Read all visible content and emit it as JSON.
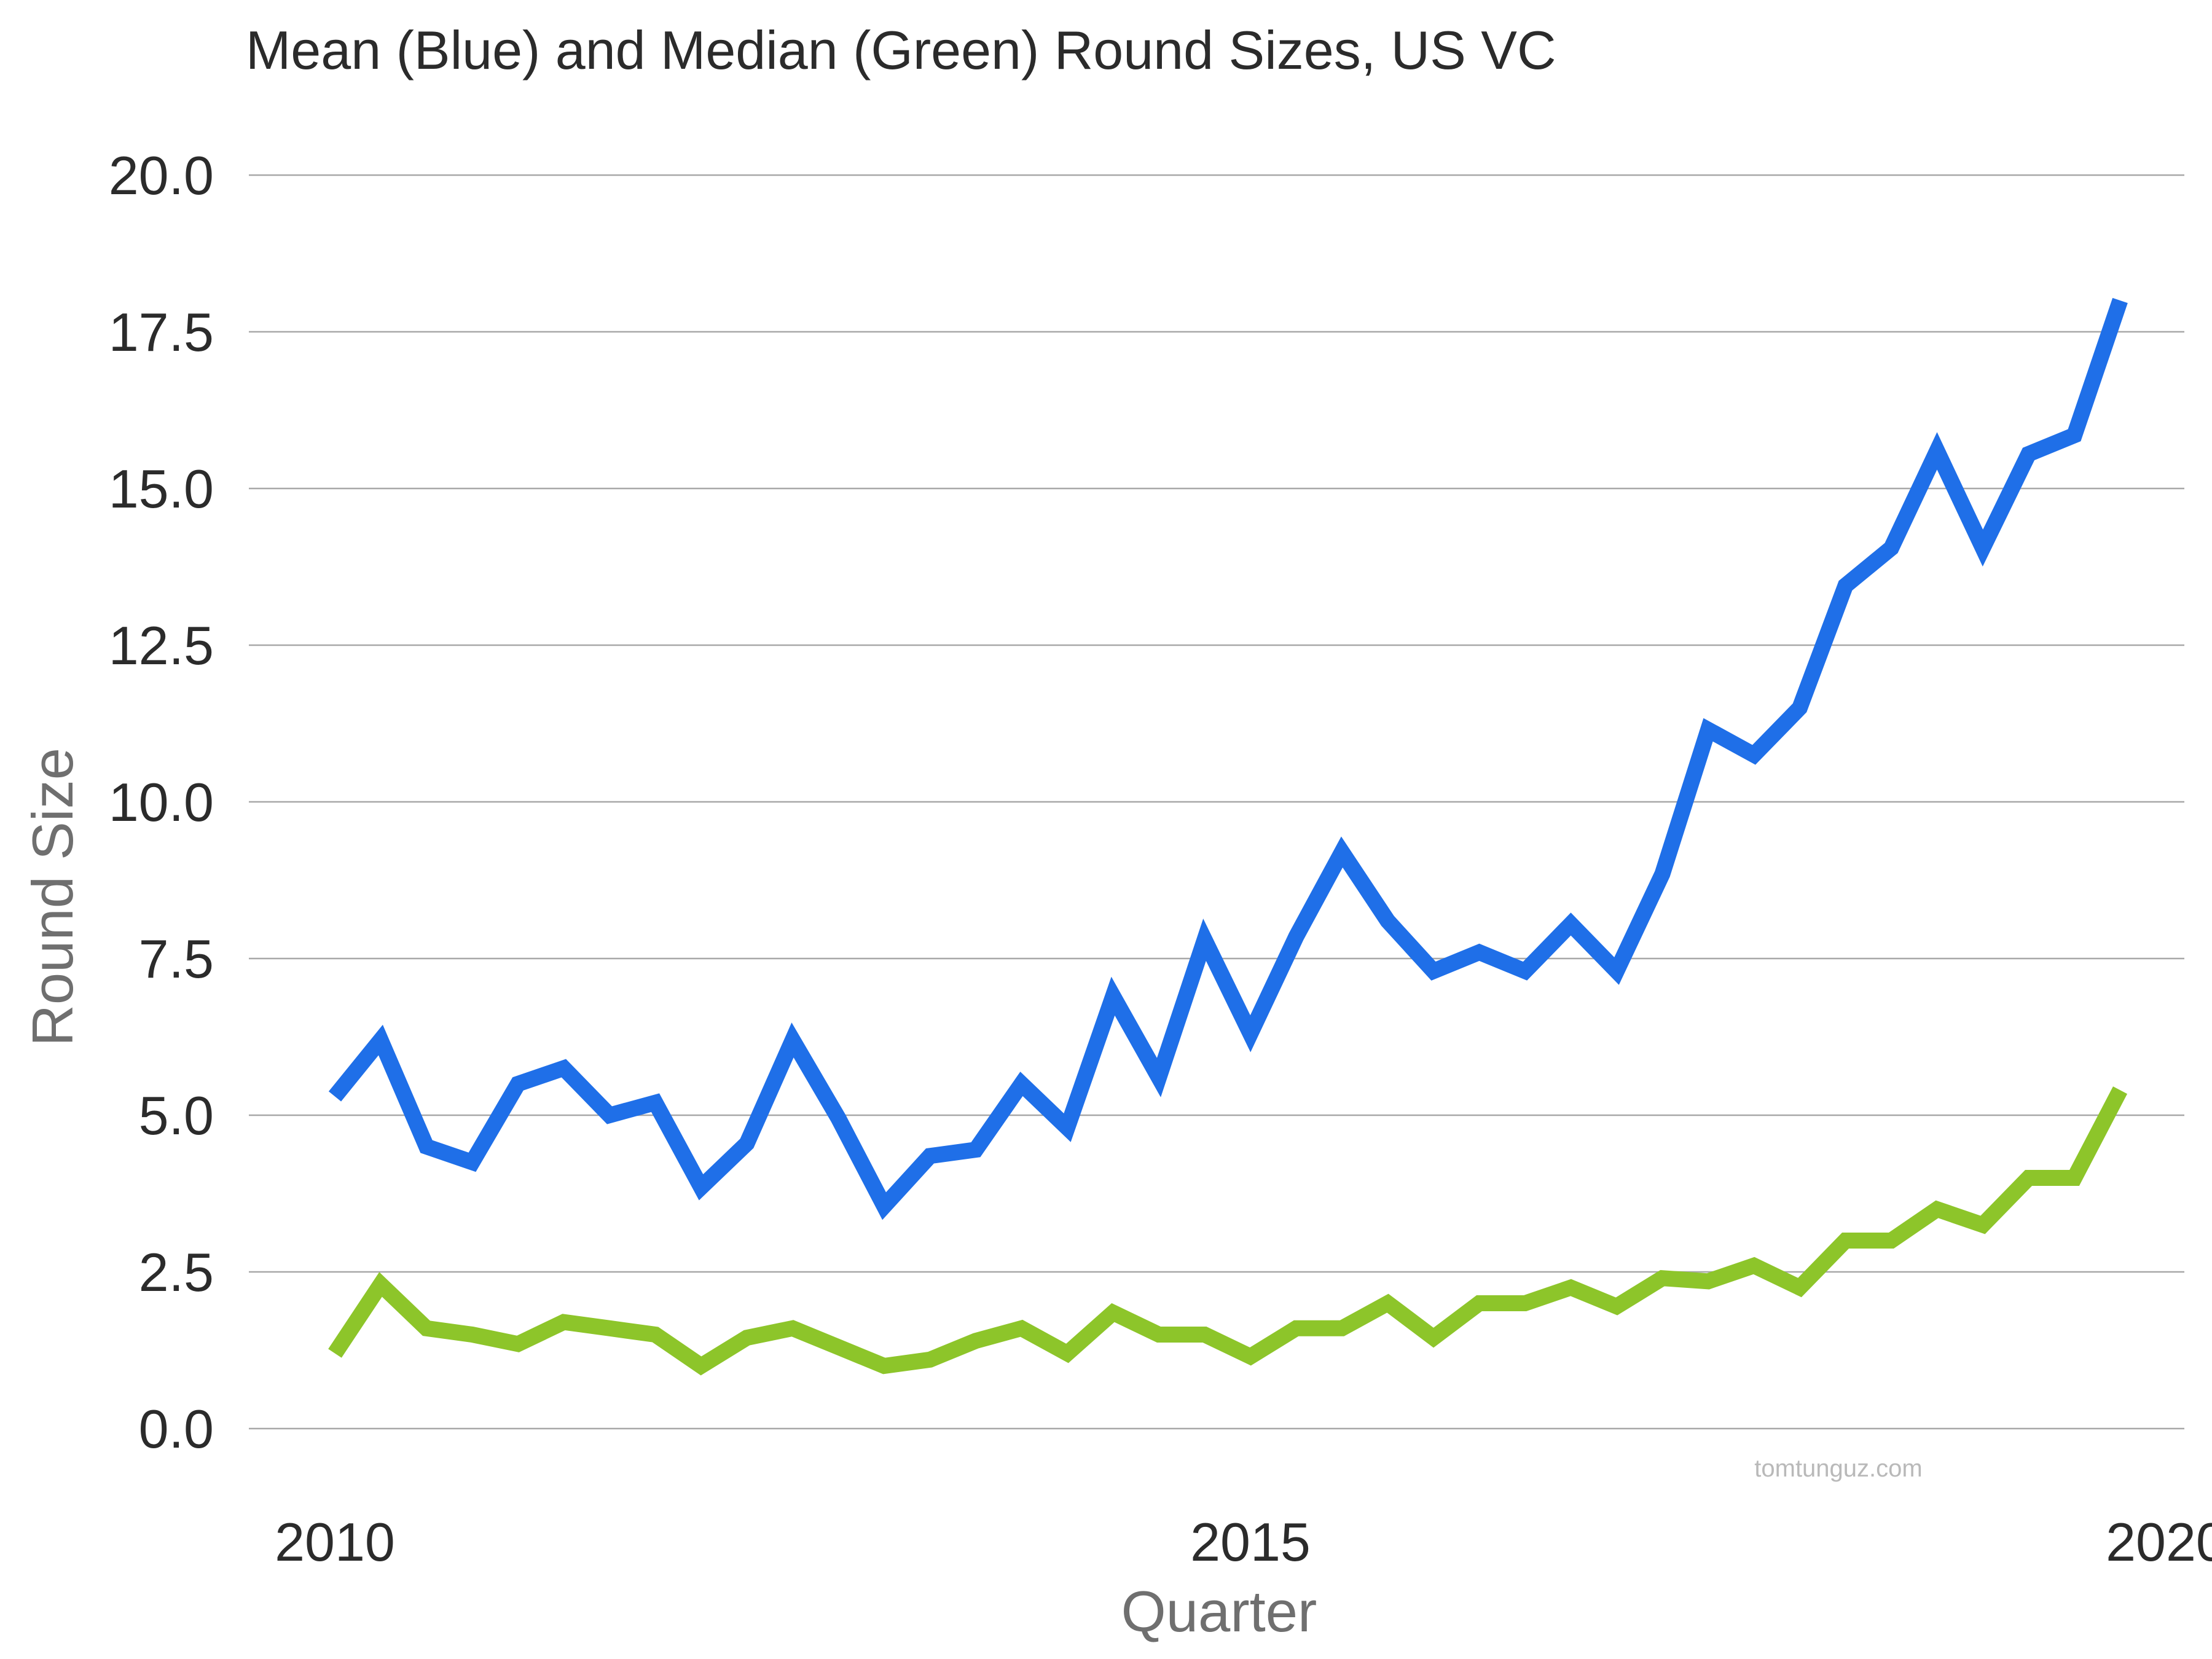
{
  "chart_data": {
    "type": "line",
    "title": "Mean (Blue) and Median (Green) Round Sizes, US VC",
    "xlabel": "Quarter",
    "ylabel": "Round Size",
    "x_ticks": [
      "2010",
      "2015",
      "2020"
    ],
    "xlim": [
      2010,
      2020
    ],
    "y_ticks": [
      "0.0",
      "2.5",
      "5.0",
      "7.5",
      "10.0",
      "12.5",
      "15.0",
      "17.5",
      "20.0"
    ],
    "ylim": [
      0,
      20
    ],
    "grid": "horizontal",
    "watermark": "tomtunguz.com",
    "x": [
      2010.0,
      2010.25,
      2010.5,
      2010.75,
      2011.0,
      2011.25,
      2011.5,
      2011.75,
      2012.0,
      2012.25,
      2012.5,
      2012.75,
      2013.0,
      2013.25,
      2013.5,
      2013.75,
      2014.0,
      2014.25,
      2014.5,
      2014.75,
      2015.0,
      2015.25,
      2015.5,
      2015.75,
      2016.0,
      2016.25,
      2016.5,
      2016.75,
      2017.0,
      2017.25,
      2017.5,
      2017.75,
      2018.0,
      2018.25,
      2018.5,
      2018.75,
      2019.0,
      2019.25,
      2019.5,
      2019.75
    ],
    "series": [
      {
        "color": "#1f6fe8",
        "values": [
          5.3,
          6.2,
          4.5,
          4.25,
          5.5,
          5.75,
          5.0,
          5.2,
          3.85,
          4.55,
          6.2,
          4.95,
          3.55,
          4.35,
          4.45,
          5.5,
          4.8,
          6.9,
          5.6,
          7.8,
          6.3,
          7.85,
          9.2,
          8.1,
          7.3,
          7.6,
          7.3,
          8.05,
          7.3,
          8.85,
          11.15,
          10.75,
          11.5,
          13.45,
          14.05,
          15.6,
          14.05,
          15.55,
          15.85,
          18.0
        ]
      },
      {
        "color": "#8dc52a",
        "values": [
          1.2,
          2.3,
          1.6,
          1.5,
          1.35,
          1.7,
          1.6,
          1.5,
          1.0,
          1.45,
          1.6,
          1.3,
          1.0,
          1.1,
          1.4,
          1.6,
          1.2,
          1.85,
          1.5,
          1.5,
          1.15,
          1.6,
          1.6,
          2.0,
          1.45,
          2.0,
          2.0,
          2.25,
          1.95,
          2.4,
          2.35,
          2.6,
          2.25,
          3.0,
          3.0,
          3.5,
          3.25,
          4.0,
          4.0,
          5.4
        ]
      }
    ]
  }
}
